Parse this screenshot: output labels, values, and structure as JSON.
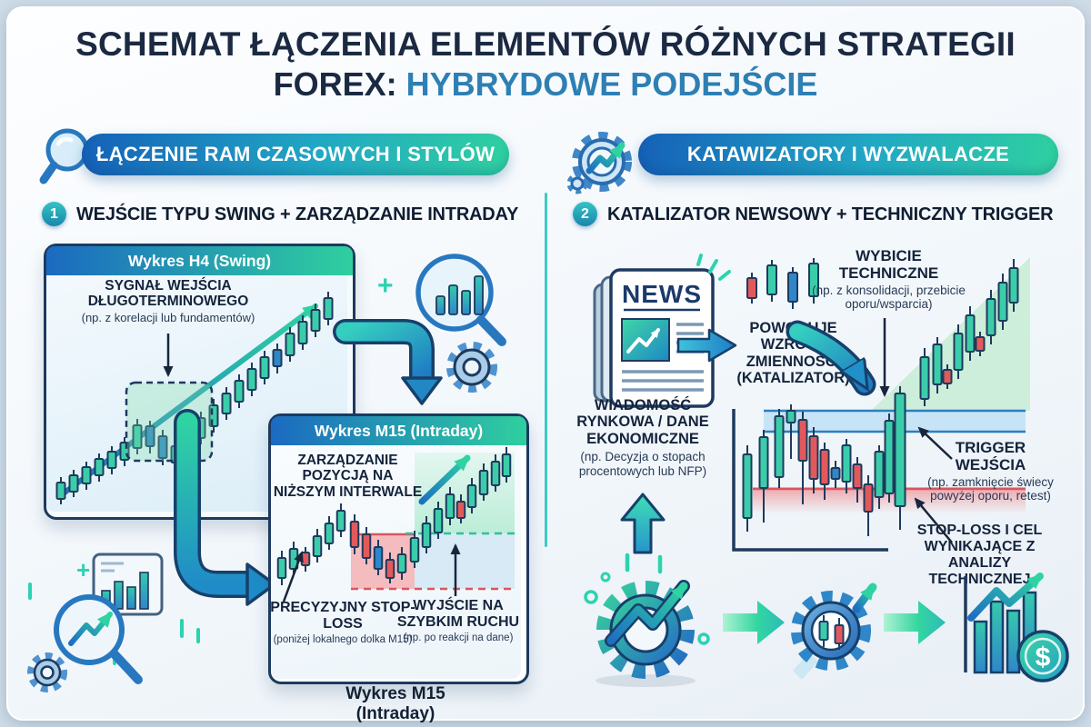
{
  "title": {
    "line1": "SCHEMAT ŁĄCZENIA ELEMENTÓW RÓŻNYCH STRATEGII",
    "line2_prefix": "FOREX: ",
    "line2_accent": "HYBRYDOWE PODEJŚCIE"
  },
  "sections": {
    "left": {
      "badge": "ŁĄCZENIE RAM CZASOWYCH I STYLÓW",
      "step_number": "1",
      "step_title": "WEJŚCIE TYPU SWING + ZARZĄDZANIE INTRADAY",
      "plus": "+",
      "h4": {
        "header": "Wykres H4 (Swing)",
        "signal_title": "SYGNAŁ WEJŚCIA DŁUGOTERMINOWEGO",
        "signal_sub": "(np. z korelacji lub fundamentów)"
      },
      "m15": {
        "header": "Wykres M15 (Intraday)",
        "manage_title": "ZARZĄDZANIE POZYCJĄ NA NIŻSZYM INTERWALE",
        "stop_title": "PRECYZYJNY STOP-LOSS",
        "stop_sub": "(poniżej lokalnego dolka M15)",
        "exit_title": "WYJŚCIE NA SZYBKIM RUCHU",
        "exit_sub": "(np. po reakcji na dane)",
        "caption_line1": "Wykres M15",
        "caption_line2": "(Intraday)"
      }
    },
    "right": {
      "badge": "KATAWIZATORY I WYZWALACZE",
      "step_number": "2",
      "step_title": "KATALIZATOR NEWSOWY + TECHNICZNY TRIGGER",
      "news_label": "NEWS",
      "news_title": "WIADOMOŚĆ RYNKOWA / DANE EKONOMICZNE",
      "news_sub": "(np. Decyzja o stopach procentowych lub NFP)",
      "catalyst": "POWODUJE WZROST ZMIENNOŚCI (KATALIZATOR)",
      "breakout_title": "WYBICIE TECHNICZNE",
      "breakout_sub": "(np. z konsolidacji, przebicie oporu/wsparcia)",
      "trigger_title": "TRIGGER WEJŚCIA",
      "trigger_sub": "(np. zamknięcie świecy powyżej oporu, retest)",
      "stoploss_title": "STOP-LOSS I CEL WYNIKAJĄCE Z ANALIZY TECHNICZNEJ",
      "dollar_sign": "$"
    }
  },
  "colors": {
    "navy": "#1d3a5f",
    "accent_blue": "#2e7fb4",
    "teal": "#2fd0a0",
    "candle_up": "#3bcdaa",
    "candle_down": "#e2595c",
    "candle_blue": "#2f86c8",
    "pill_start": "#1561b8",
    "pill_end": "#2fd0a0",
    "divider": "#3fc9c6"
  }
}
